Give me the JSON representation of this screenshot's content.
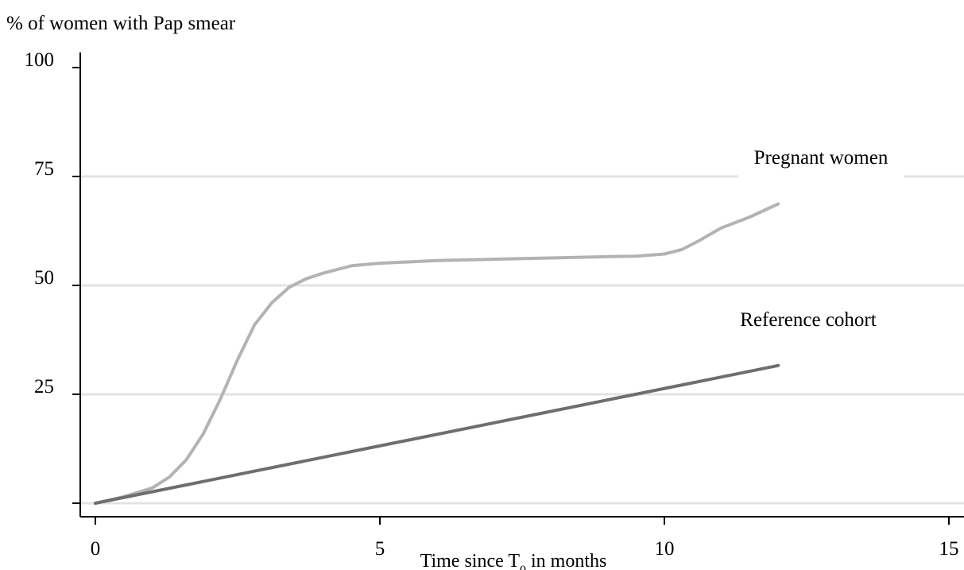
{
  "chart_data": {
    "type": "line",
    "title": "",
    "ylabel": "% of women with Pap smear",
    "xlabel": {
      "prefix": "Time since T",
      "subscript": "0",
      "suffix": " in months"
    },
    "xlim": [
      -0.5,
      15.3
    ],
    "ylim": [
      -5,
      100
    ],
    "x_ticks": [
      {
        "value": 0,
        "label": "0"
      },
      {
        "value": 5,
        "label": "5"
      },
      {
        "value": 10,
        "label": "10"
      },
      {
        "value": 15,
        "label": "15"
      }
    ],
    "y_ticks": [
      {
        "value": 0,
        "label": ""
      },
      {
        "value": 25,
        "label": "25"
      },
      {
        "value": 50,
        "label": "50"
      },
      {
        "value": 75,
        "label": "75"
      },
      {
        "value": 100,
        "label": "100"
      }
    ],
    "grid": {
      "horizontal": true,
      "values": [
        0,
        25,
        50,
        75
      ]
    },
    "series": [
      {
        "name": "Pregnant women",
        "color": "#b3b3b3",
        "label_position": "above line end, at 75 gridline",
        "x": [
          0,
          0.5,
          1.0,
          1.3,
          1.6,
          1.9,
          2.2,
          2.5,
          2.8,
          3.1,
          3.4,
          3.7,
          4.0,
          4.5,
          5.0,
          6.0,
          7.0,
          8.0,
          9.0,
          9.5,
          10.0,
          10.3,
          10.6,
          11.0,
          11.5,
          12.0
        ],
        "y": [
          0,
          1.5,
          3.5,
          6,
          10,
          16,
          24,
          33,
          41,
          46,
          49.5,
          51.5,
          52.8,
          54.5,
          55.1,
          55.7,
          56.0,
          56.3,
          56.6,
          56.7,
          57.2,
          58.2,
          60.2,
          63.2,
          65.7,
          68.7
        ]
      },
      {
        "name": "Reference cohort",
        "color": "#6e6e6e",
        "label_position": "above line end",
        "x": [
          0,
          12.0
        ],
        "y": [
          0,
          31.6
        ]
      }
    ],
    "colors": {
      "grid": "#e3e3e3",
      "axis": "#000000",
      "text": "#000000"
    }
  }
}
